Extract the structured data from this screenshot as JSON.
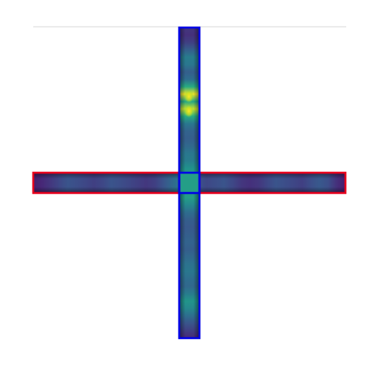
{
  "figure": {
    "background_color": "#ffffff",
    "frame_line_color": "#d9d9d9",
    "colormap": "viridis",
    "vertical_arm_box_color": "#0000e6",
    "horizontal_arm_box_color": "#e6001e"
  },
  "vertical_arm": {
    "label": "vertical-arm",
    "intensity_profile_top_to_bottom": [
      0.18,
      0.16,
      0.2,
      0.3,
      0.42,
      0.4,
      0.3,
      0.36,
      0.62,
      0.98,
      0.6,
      0.92,
      0.62,
      0.4,
      0.32,
      0.3,
      0.34,
      0.4,
      0.42,
      0.5,
      0.56,
      0.5,
      0.52,
      0.56,
      0.46,
      0.36,
      0.3,
      0.28,
      0.3,
      0.32,
      0.3,
      0.34,
      0.38,
      0.4,
      0.36,
      0.34,
      0.42,
      0.52,
      0.46,
      0.36,
      0.26,
      0.2,
      0.14
    ]
  },
  "horizontal_arm": {
    "label": "horizontal-arm",
    "intensity_profile_left_to_right": [
      0.1,
      0.14,
      0.18,
      0.22,
      0.26,
      0.24,
      0.22,
      0.2,
      0.22,
      0.26,
      0.24,
      0.22,
      0.2,
      0.18,
      0.2,
      0.26,
      0.34,
      0.4,
      0.34,
      0.26,
      0.22,
      0.24,
      0.26,
      0.22,
      0.18,
      0.16,
      0.18,
      0.22,
      0.26,
      0.24,
      0.22,
      0.2,
      0.24,
      0.28,
      0.24,
      0.16,
      0.1
    ]
  },
  "junction": {
    "label": "junction",
    "intensity": 0.56
  }
}
